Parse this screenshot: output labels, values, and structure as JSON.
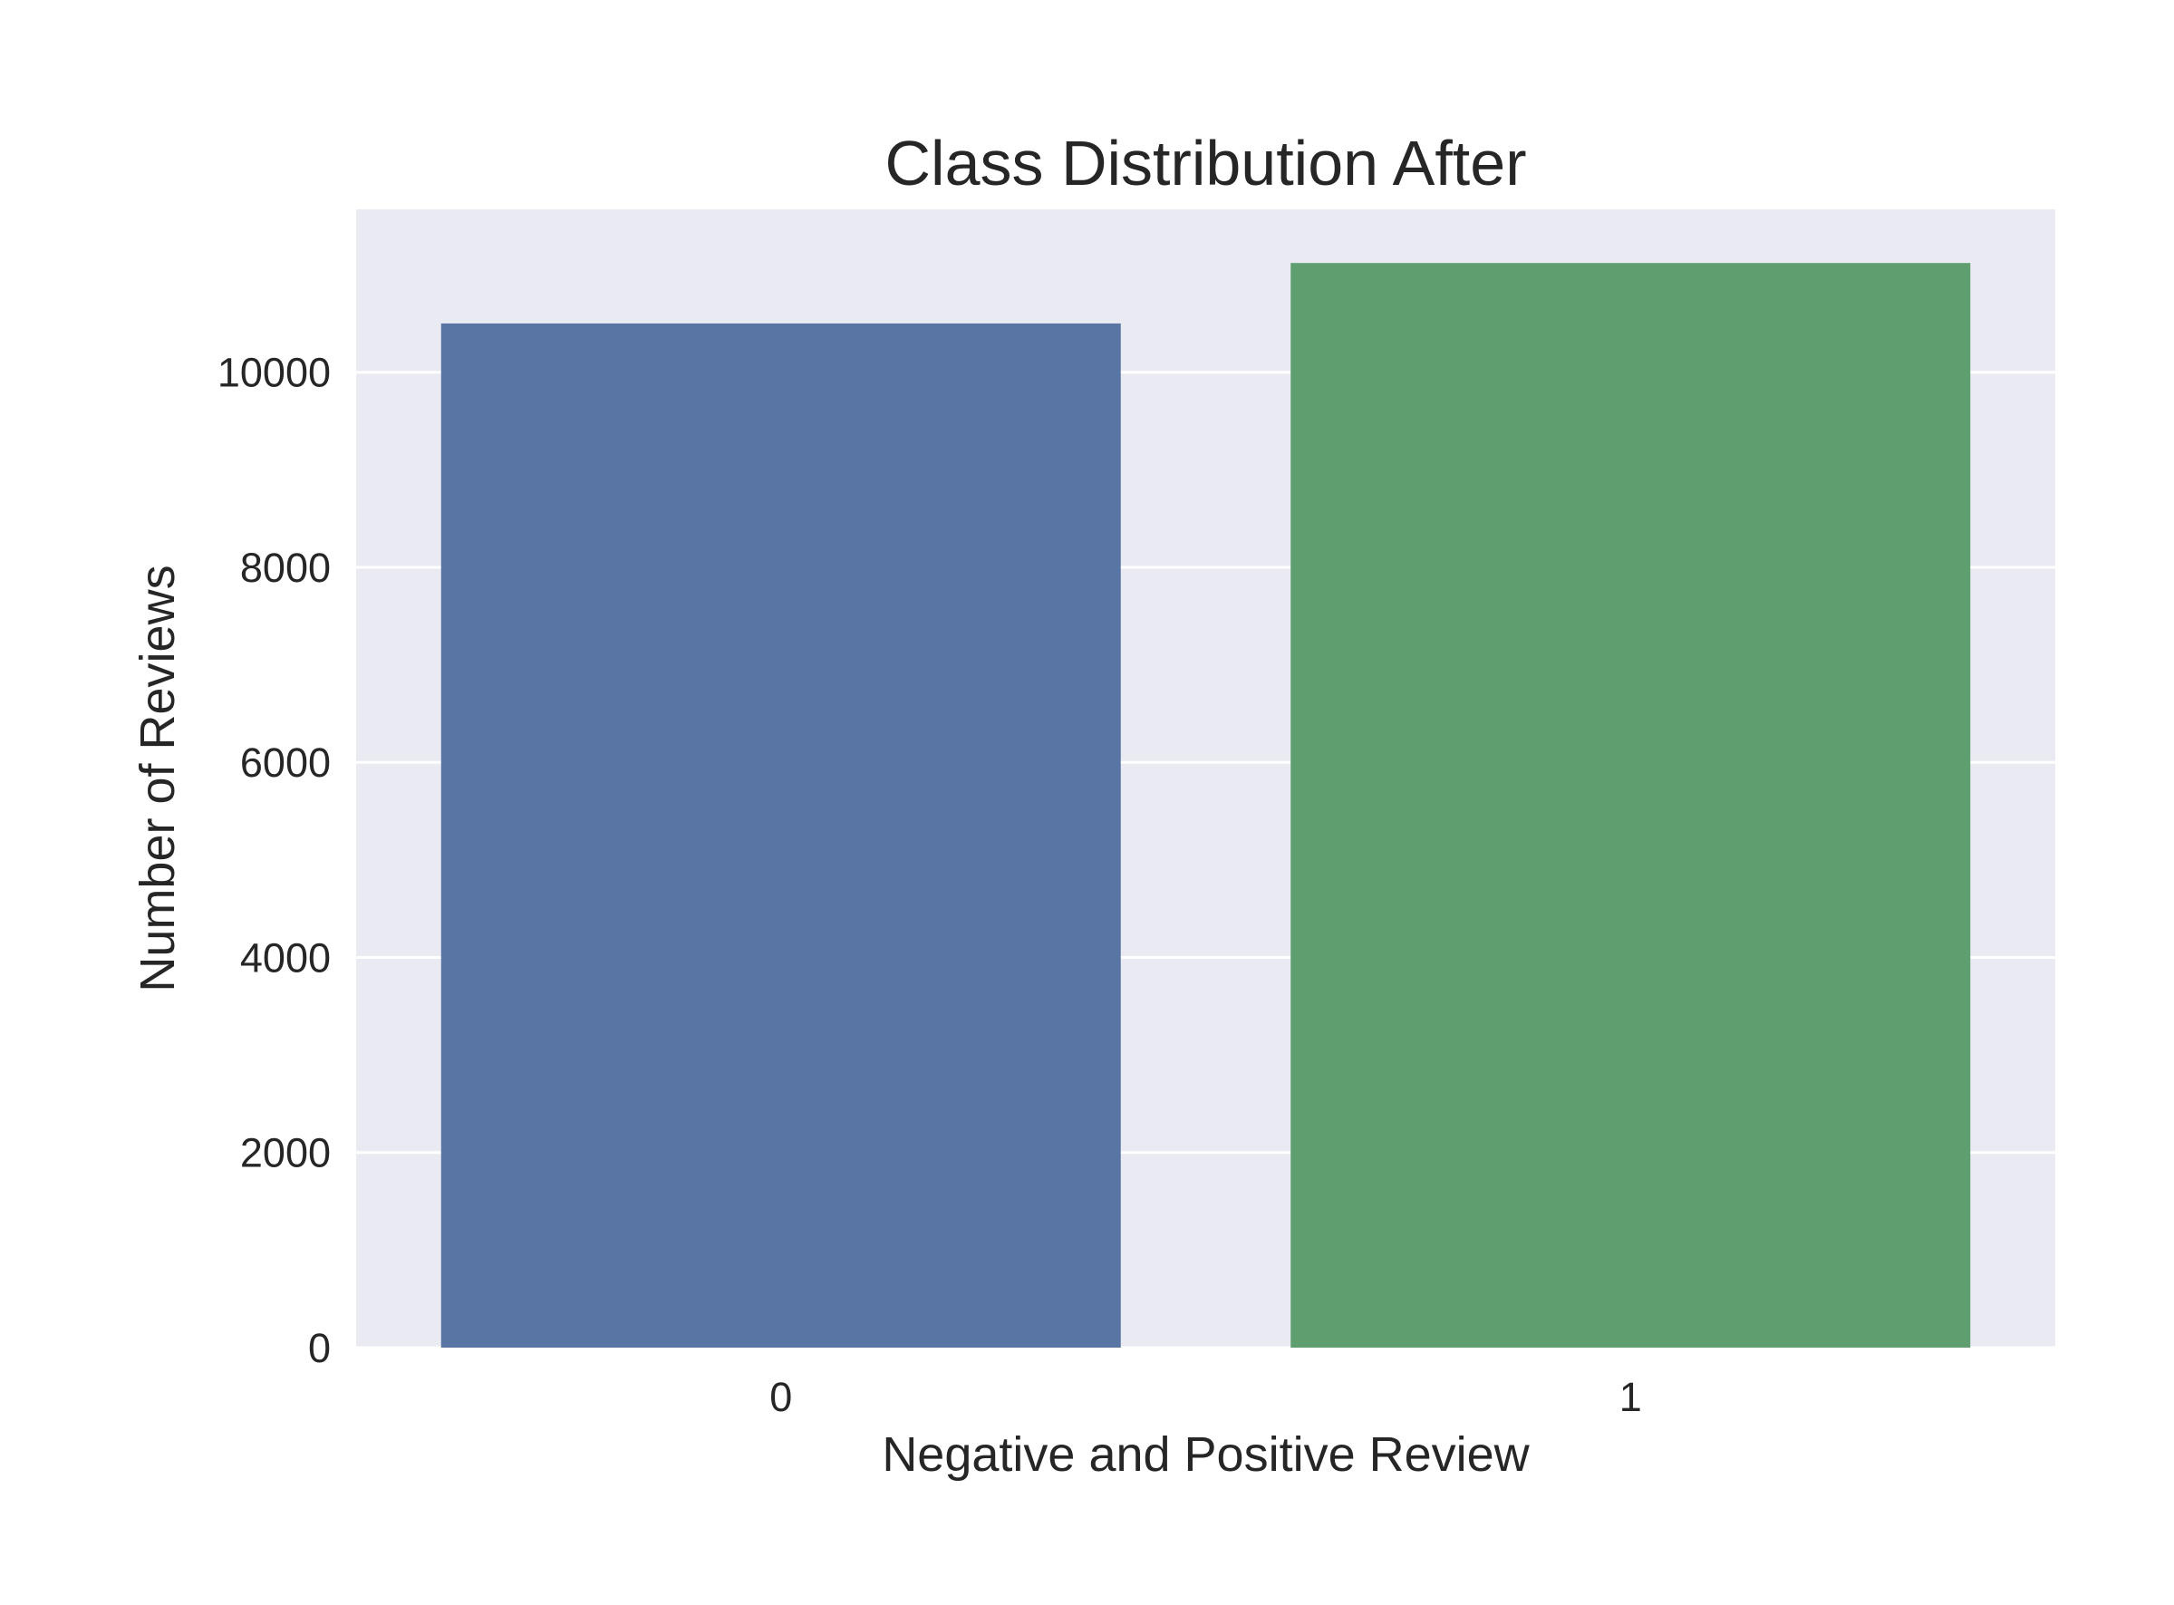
{
  "chart_data": {
    "type": "bar",
    "title": "Class Distribution After",
    "xlabel": "Negative and Positive Review",
    "ylabel": "Number of Reviews",
    "categories": [
      "0",
      "1"
    ],
    "values": [
      10500,
      11120
    ],
    "ylim": [
      0,
      11670
    ],
    "yticks": [
      0,
      2000,
      4000,
      6000,
      8000,
      10000
    ],
    "ytick_labels": [
      "0",
      "2000",
      "4000",
      "6000",
      "8000",
      "10000"
    ],
    "grid": "horizontal",
    "legend": "none",
    "colors": [
      "#5875a4",
      "#5f9e6e"
    ],
    "background": "#eaeaf2",
    "gridline_color": "#ffffff"
  }
}
